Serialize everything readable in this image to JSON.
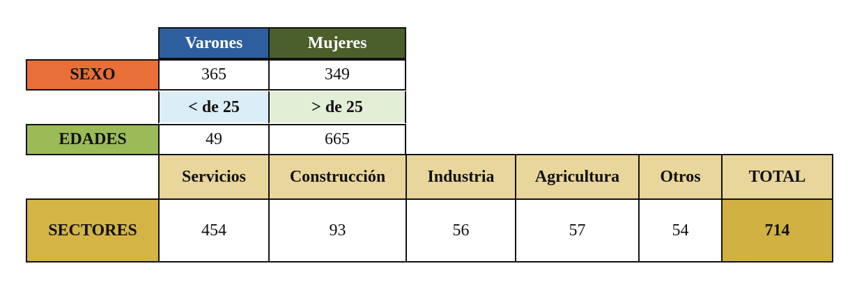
{
  "sexo": {
    "label": "SEXO",
    "headers": [
      "Varones",
      "Mujeres"
    ],
    "values": [
      365,
      349
    ]
  },
  "edades": {
    "label": "EDADES",
    "headers": [
      "< de 25",
      "> de 25"
    ],
    "values": [
      49,
      665
    ]
  },
  "sectores": {
    "label": "SECTORES",
    "headers": [
      "Servicios",
      "Construcción",
      "Industria",
      "Agricultura",
      "Otros",
      "TOTAL"
    ],
    "values": [
      454,
      93,
      56,
      57,
      54,
      714
    ]
  }
}
